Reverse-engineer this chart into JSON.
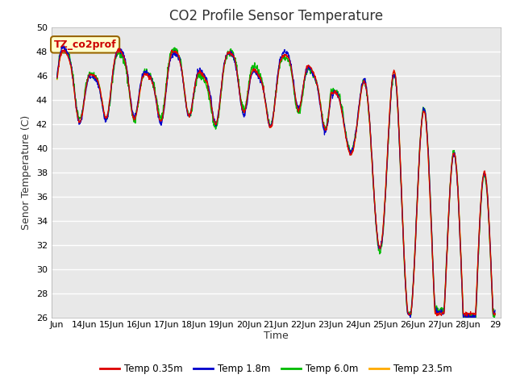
{
  "title": "CO2 Profile Sensor Temperature",
  "ylabel": "Senor Temperature (C)",
  "xlabel": "Time",
  "ylim": [
    26,
    50
  ],
  "annotation_text": "TZ_co2prof",
  "annotation_bg": "#ffffcc",
  "annotation_border": "#cc0000",
  "bg_color": "#e8e8e8",
  "colors": {
    "temp_035": "#dd0000",
    "temp_18": "#0000cc",
    "temp_60": "#00bb00",
    "temp_235": "#ffaa00"
  },
  "legend_labels": [
    "Temp 0.35m",
    "Temp 1.8m",
    "Temp 6.0m",
    "Temp 23.5m"
  ],
  "xtick_labels": [
    "Jun",
    "14Jun",
    "15Jun",
    "16Jun",
    "17Jun",
    "18Jun",
    "19Jun",
    "20Jun",
    "21Jun",
    "22Jun",
    "23Jun",
    "24Jun",
    "25Jun",
    "26Jun",
    "27Jun",
    "28Jun",
    "29"
  ],
  "title_fontsize": 12,
  "label_fontsize": 9,
  "tick_fontsize": 8
}
